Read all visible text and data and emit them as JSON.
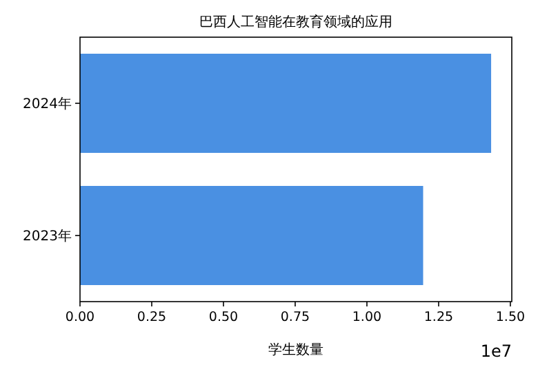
{
  "chart_data": {
    "type": "bar",
    "orientation": "horizontal",
    "title": "巴西人工智能在教育领域的应用",
    "xlabel": "学生数量",
    "categories": [
      "2024年",
      "2023年"
    ],
    "values": [
      1.433,
      1.196
    ],
    "color": "#4a90e2",
    "xlim": [
      0,
      1.505
    ],
    "xticks": [
      {
        "value": 0,
        "label": "0.00"
      },
      {
        "value": 0.25,
        "label": "0.25"
      },
      {
        "value": 0.5,
        "label": "0.50"
      },
      {
        "value": 0.75,
        "label": "0.75"
      },
      {
        "value": 1,
        "label": "1.00"
      },
      {
        "value": 1.25,
        "label": "1.25"
      },
      {
        "value": 1.5,
        "label": "1.50"
      }
    ],
    "annotations": [
      "1e7"
    ]
  }
}
